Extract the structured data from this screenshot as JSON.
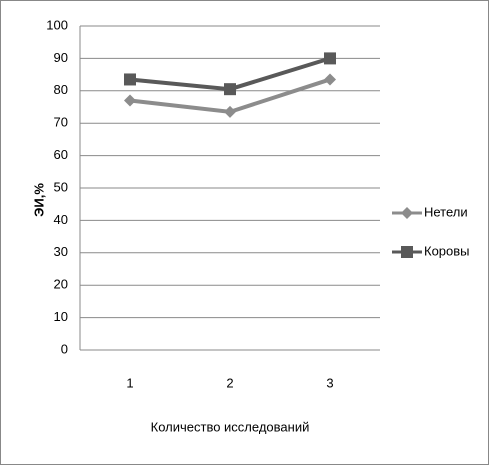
{
  "chart_data": {
    "type": "line",
    "categories": [
      "1",
      "2",
      "3"
    ],
    "series": [
      {
        "name": "Нетели",
        "color": "#8c8c8c",
        "marker": "diamond",
        "values": [
          77,
          73.5,
          83.5
        ]
      },
      {
        "name": "Коровы",
        "color": "#595959",
        "marker": "square",
        "values": [
          83.5,
          80.5,
          90
        ]
      }
    ],
    "ylabel": "ЭИ,%",
    "xlabel": "Количество исследований",
    "ylim": [
      0,
      100
    ],
    "yticks": [
      0,
      10,
      20,
      30,
      40,
      50,
      60,
      70,
      80,
      90,
      100
    ],
    "grid": true,
    "legend": "right"
  }
}
